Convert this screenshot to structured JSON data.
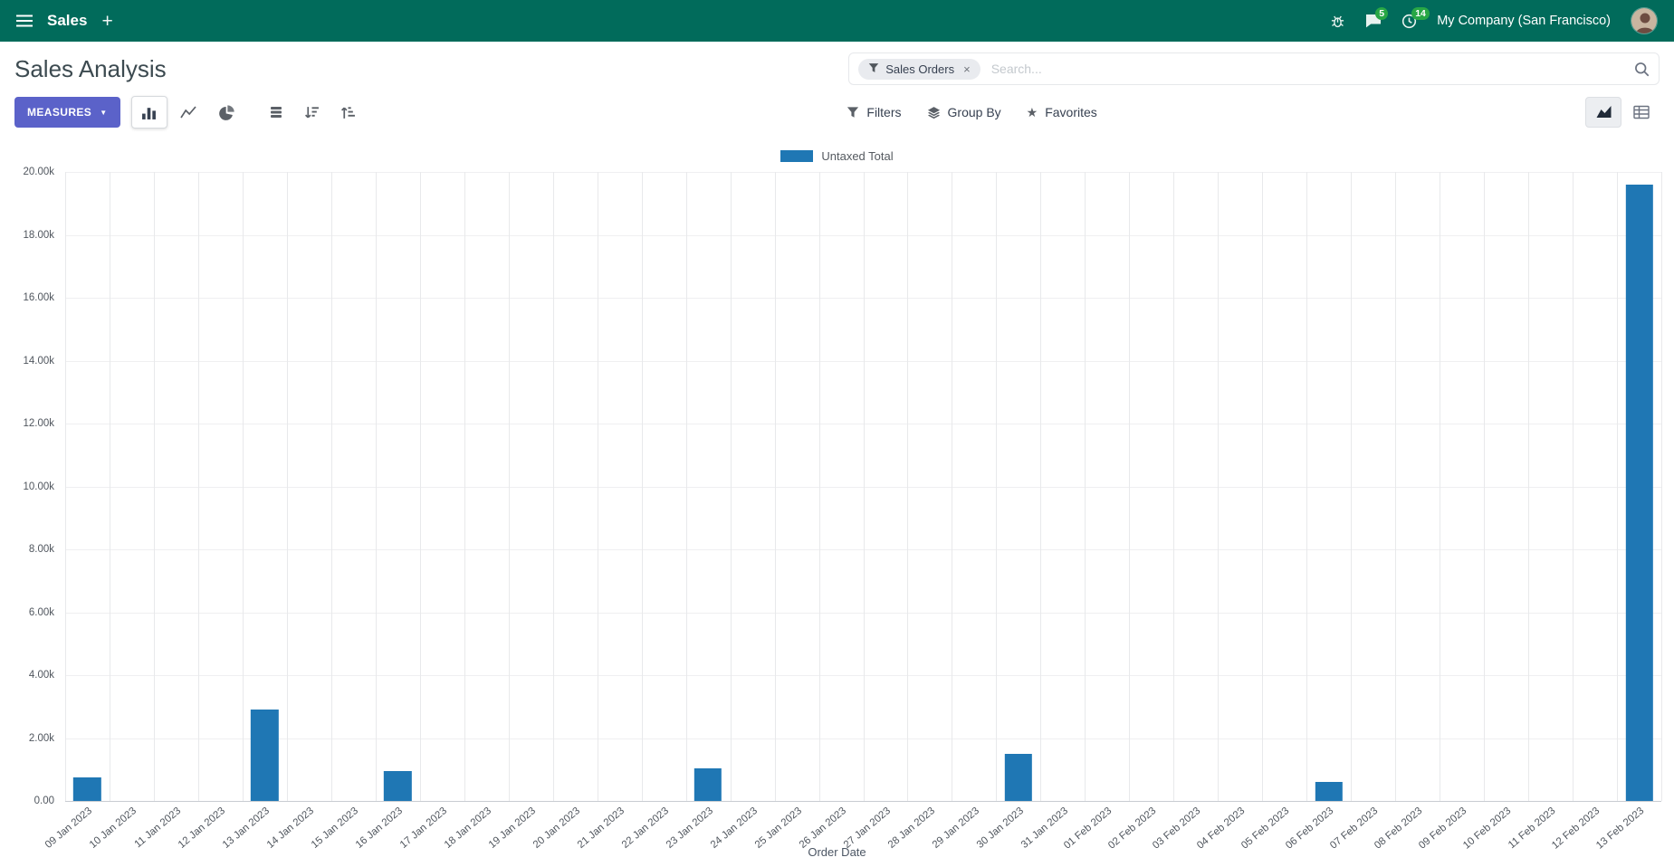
{
  "colors": {
    "navbar_bg": "#016b5b",
    "accent": "#5b62c9",
    "badge": "#28a745"
  },
  "navbar": {
    "app_name": "Sales",
    "messages_badge": "5",
    "activities_badge": "14",
    "company": "My Company (San Francisco)"
  },
  "control_panel": {
    "title": "Sales Analysis",
    "search": {
      "facet_label": "Sales Orders",
      "placeholder": "Search...",
      "remove": "×"
    },
    "measures_label": "Measures",
    "filters_label": "Filters",
    "group_by_label": "Group By",
    "favorites_label": "Favorites"
  },
  "chart_data": {
    "type": "bar",
    "title": "",
    "xlabel": "Order Date",
    "ylabel": "",
    "ylim": [
      0,
      20000
    ],
    "ytick_step": 2000,
    "ytick_labels": [
      "0.00",
      "2.00k",
      "4.00k",
      "6.00k",
      "8.00k",
      "10.00k",
      "12.00k",
      "14.00k",
      "16.00k",
      "18.00k",
      "20.00k"
    ],
    "bar_color": "#1f77b4",
    "grid": true,
    "legend_position": "top",
    "categories": [
      "09 Jan 2023",
      "10 Jan 2023",
      "11 Jan 2023",
      "12 Jan 2023",
      "13 Jan 2023",
      "14 Jan 2023",
      "15 Jan 2023",
      "16 Jan 2023",
      "17 Jan 2023",
      "18 Jan 2023",
      "19 Jan 2023",
      "20 Jan 2023",
      "21 Jan 2023",
      "22 Jan 2023",
      "23 Jan 2023",
      "24 Jan 2023",
      "25 Jan 2023",
      "26 Jan 2023",
      "27 Jan 2023",
      "28 Jan 2023",
      "29 Jan 2023",
      "30 Jan 2023",
      "31 Jan 2023",
      "01 Feb 2023",
      "02 Feb 2023",
      "03 Feb 2023",
      "04 Feb 2023",
      "05 Feb 2023",
      "06 Feb 2023",
      "07 Feb 2023",
      "08 Feb 2023",
      "09 Feb 2023",
      "10 Feb 2023",
      "11 Feb 2023",
      "12 Feb 2023",
      "13 Feb 2023"
    ],
    "series": [
      {
        "name": "Untaxed Total",
        "values": [
          750,
          0,
          0,
          0,
          2900,
          0,
          0,
          950,
          0,
          0,
          0,
          0,
          0,
          0,
          1050,
          0,
          0,
          0,
          0,
          0,
          0,
          1500,
          0,
          0,
          0,
          0,
          0,
          0,
          600,
          0,
          0,
          0,
          0,
          0,
          0,
          19600
        ]
      }
    ]
  }
}
